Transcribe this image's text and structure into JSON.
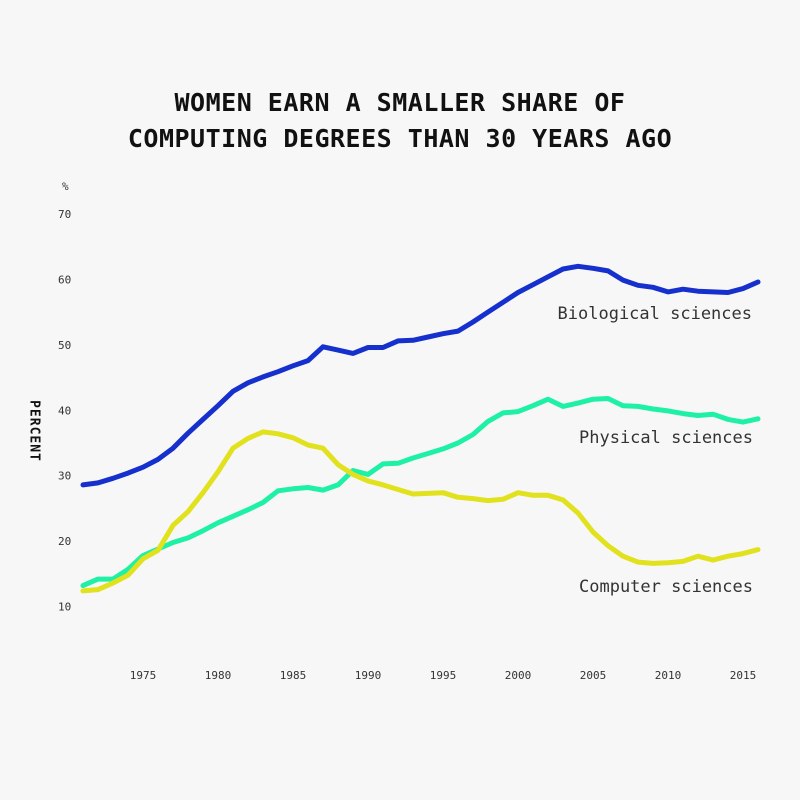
{
  "chart_data": {
    "type": "line",
    "title_lines": [
      "WOMEN EARN A SMALLER SHARE OF",
      "COMPUTING DEGREES THAN 30 YEARS AGO"
    ],
    "ylabel": "PERCENT",
    "yunit": "%",
    "xlim": [
      1971,
      2016
    ],
    "ylim": [
      0,
      70
    ],
    "xticks": [
      1975,
      1980,
      1985,
      1990,
      1995,
      2000,
      2005,
      2010,
      2015
    ],
    "yticks": [
      10,
      20,
      30,
      40,
      50,
      60,
      70
    ],
    "grid": false,
    "legend": "inline labels at right end of lines",
    "x": [
      1971,
      1972,
      1973,
      1974,
      1975,
      1976,
      1977,
      1978,
      1979,
      1980,
      1981,
      1982,
      1983,
      1984,
      1985,
      1986,
      1987,
      1988,
      1989,
      1990,
      1991,
      1992,
      1993,
      1994,
      1995,
      1996,
      1997,
      1998,
      1999,
      2000,
      2001,
      2002,
      2003,
      2004,
      2005,
      2006,
      2007,
      2008,
      2009,
      2010,
      2011,
      2012,
      2013,
      2014,
      2015,
      2016
    ],
    "series": [
      {
        "name": "Biological sciences",
        "color": "#1530cc",
        "values": [
          28.6,
          28.9,
          29.6,
          30.4,
          31.3,
          32.5,
          34.2,
          36.5,
          38.6,
          40.7,
          42.9,
          44.2,
          45.1,
          45.9,
          46.8,
          47.6,
          49.7,
          49.2,
          48.7,
          49.6,
          49.6,
          50.6,
          50.7,
          51.2,
          51.7,
          52.1,
          53.5,
          55.0,
          56.5,
          58.0,
          59.2,
          60.4,
          61.6,
          62.0,
          61.7,
          61.3,
          59.9,
          59.1,
          58.8,
          58.1,
          58.5,
          58.2,
          58.1,
          58.0,
          58.6,
          59.6
        ]
      },
      {
        "name": "Physical sciences",
        "color": "#1ef1a6",
        "values": [
          13.2,
          14.2,
          14.2,
          15.7,
          17.8,
          18.8,
          19.8,
          20.5,
          21.6,
          22.8,
          23.8,
          24.8,
          25.9,
          27.7,
          28.0,
          28.2,
          27.8,
          28.6,
          30.8,
          30.2,
          31.8,
          31.9,
          32.7,
          33.4,
          34.1,
          35.0,
          36.3,
          38.3,
          39.6,
          39.8,
          40.7,
          41.7,
          40.6,
          41.1,
          41.7,
          41.8,
          40.7,
          40.6,
          40.2,
          39.9,
          39.5,
          39.2,
          39.4,
          38.6,
          38.2,
          38.7
        ]
      },
      {
        "name": "Computer sciences",
        "color": "#e1e11e",
        "values": [
          12.4,
          12.6,
          13.6,
          14.8,
          17.3,
          18.6,
          22.4,
          24.5,
          27.4,
          30.6,
          34.2,
          35.7,
          36.7,
          36.4,
          35.8,
          34.7,
          34.2,
          31.7,
          30.2,
          29.2,
          28.6,
          27.9,
          27.2,
          27.3,
          27.4,
          26.7,
          26.5,
          26.2,
          26.4,
          27.4,
          27.0,
          27.0,
          26.3,
          24.3,
          21.4,
          19.3,
          17.7,
          16.8,
          16.6,
          16.7,
          16.9,
          17.7,
          17.1,
          17.7,
          18.1,
          18.7
        ]
      }
    ]
  }
}
